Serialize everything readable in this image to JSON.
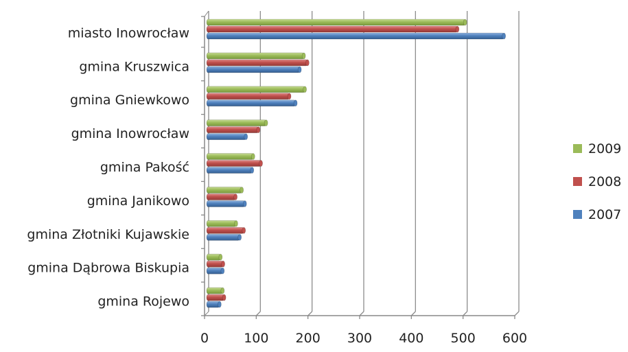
{
  "chart_data": {
    "type": "bar",
    "orientation": "horizontal",
    "categories": [
      "miasto Inowrocław",
      "gmina Kruszwica",
      "gmina Gniewkowo",
      "gmina Inowrocław",
      "gmina Pakość",
      "gmina Janikowo",
      "gmina Złotniki Kujawskie",
      "gmina Dąbrowa Biskupia",
      "gmina Rojewo"
    ],
    "series": [
      {
        "name": "2009",
        "color": "#9BBB59",
        "values": [
          500,
          188,
          190,
          115,
          90,
          68,
          57,
          27,
          31
        ]
      },
      {
        "name": "2008",
        "color": "#C0504D",
        "values": [
          485,
          195,
          160,
          100,
          105,
          56,
          72,
          32,
          34
        ]
      },
      {
        "name": "2007",
        "color": "#4F81BD",
        "values": [
          575,
          180,
          172,
          76,
          88,
          74,
          64,
          31,
          25
        ]
      }
    ],
    "xlim": [
      0,
      600
    ],
    "xticks": [
      "0",
      "100",
      "200",
      "300",
      "400",
      "500",
      "600"
    ],
    "grid": "vertical",
    "legend": "right"
  }
}
